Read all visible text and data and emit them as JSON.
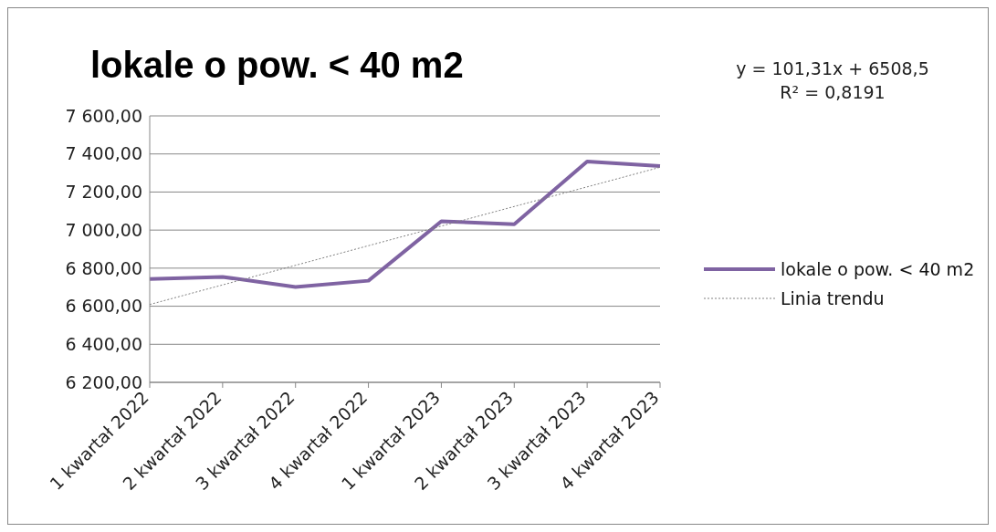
{
  "chart_data": {
    "type": "line",
    "title": "lokale o pow. < 40 m2",
    "categories": [
      "1 kwartał 2022",
      "2 kwartał 2022",
      "3 kwartał 2022",
      "4 kwartał 2022",
      "1 kwartał 2023",
      "2 kwartał 2023",
      "3 kwartał 2023",
      "4 kwartał 2023"
    ],
    "series": [
      {
        "name": "lokale o pow. < 40 m2",
        "color": "#7f63a2",
        "values": [
          6743,
          6754,
          6701,
          6734,
          7046,
          7031,
          7360,
          7336
        ]
      },
      {
        "name": "Linia trendu",
        "color": "#808080",
        "line_style": "dotted",
        "values": [
          6609,
          null,
          null,
          null,
          null,
          null,
          null,
          7330
        ]
      }
    ],
    "ylim": [
      6200,
      7600
    ],
    "yticks": [
      {
        "value": 6200,
        "label": "6 200,00"
      },
      {
        "value": 6400,
        "label": "6 400,00"
      },
      {
        "value": 6600,
        "label": "6 600,00"
      },
      {
        "value": 6800,
        "label": "6 800,00"
      },
      {
        "value": 7000,
        "label": "7 000,00"
      },
      {
        "value": 7200,
        "label": "7 200,00"
      },
      {
        "value": 7400,
        "label": "7 400,00"
      },
      {
        "value": 7600,
        "label": "7 600,00"
      }
    ],
    "grid": "y",
    "legend": "right",
    "marker": "none",
    "annotations": [
      "y = 101,31x + 6508,5",
      "R² = 0,8191"
    ]
  }
}
